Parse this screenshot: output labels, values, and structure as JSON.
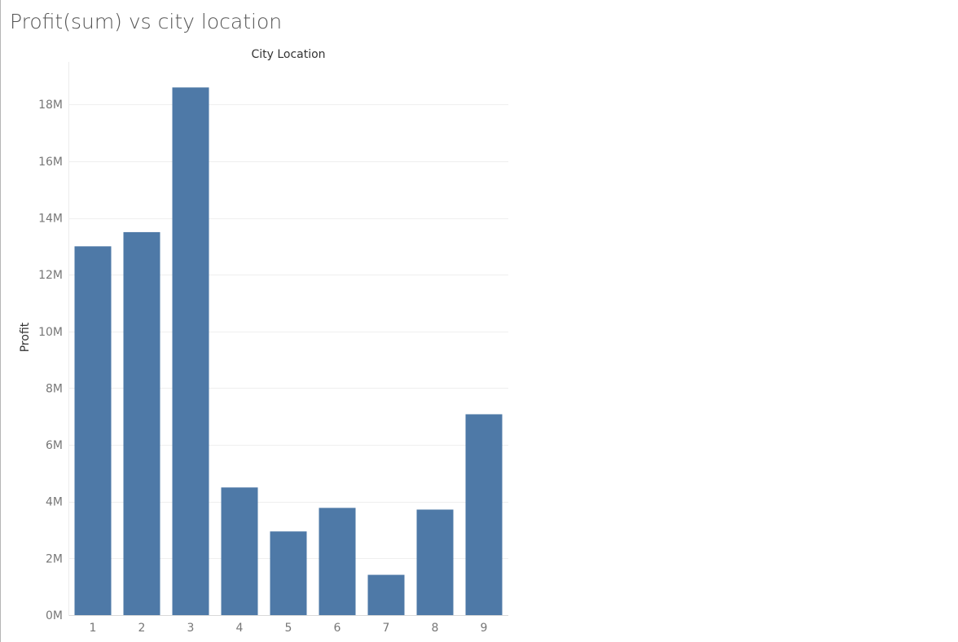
{
  "sheet": {
    "title": "Profit(sum) vs city location"
  },
  "colors": {
    "bar": "#4e79a7",
    "tick_text": "#777777",
    "gridline": "#efefef"
  },
  "chart_data": {
    "type": "bar",
    "title": "Profit(sum) vs city location",
    "xlabel": "City  Location",
    "ylabel": "Profit",
    "x_axis_position": "top",
    "categories": [
      "1",
      "2",
      "3",
      "4",
      "5",
      "6",
      "7",
      "8",
      "9"
    ],
    "values": [
      13000000,
      13500000,
      18600000,
      4500000,
      2950000,
      3780000,
      1420000,
      3720000,
      7080000
    ],
    "ylim": [
      0,
      19500000
    ],
    "yticks": [
      0,
      2000000,
      4000000,
      6000000,
      8000000,
      10000000,
      12000000,
      14000000,
      16000000,
      18000000
    ],
    "ytick_labels": [
      "0M",
      "2M",
      "4M",
      "6M",
      "8M",
      "10M",
      "12M",
      "14M",
      "16M",
      "18M"
    ],
    "grid": true,
    "legend": "none"
  }
}
